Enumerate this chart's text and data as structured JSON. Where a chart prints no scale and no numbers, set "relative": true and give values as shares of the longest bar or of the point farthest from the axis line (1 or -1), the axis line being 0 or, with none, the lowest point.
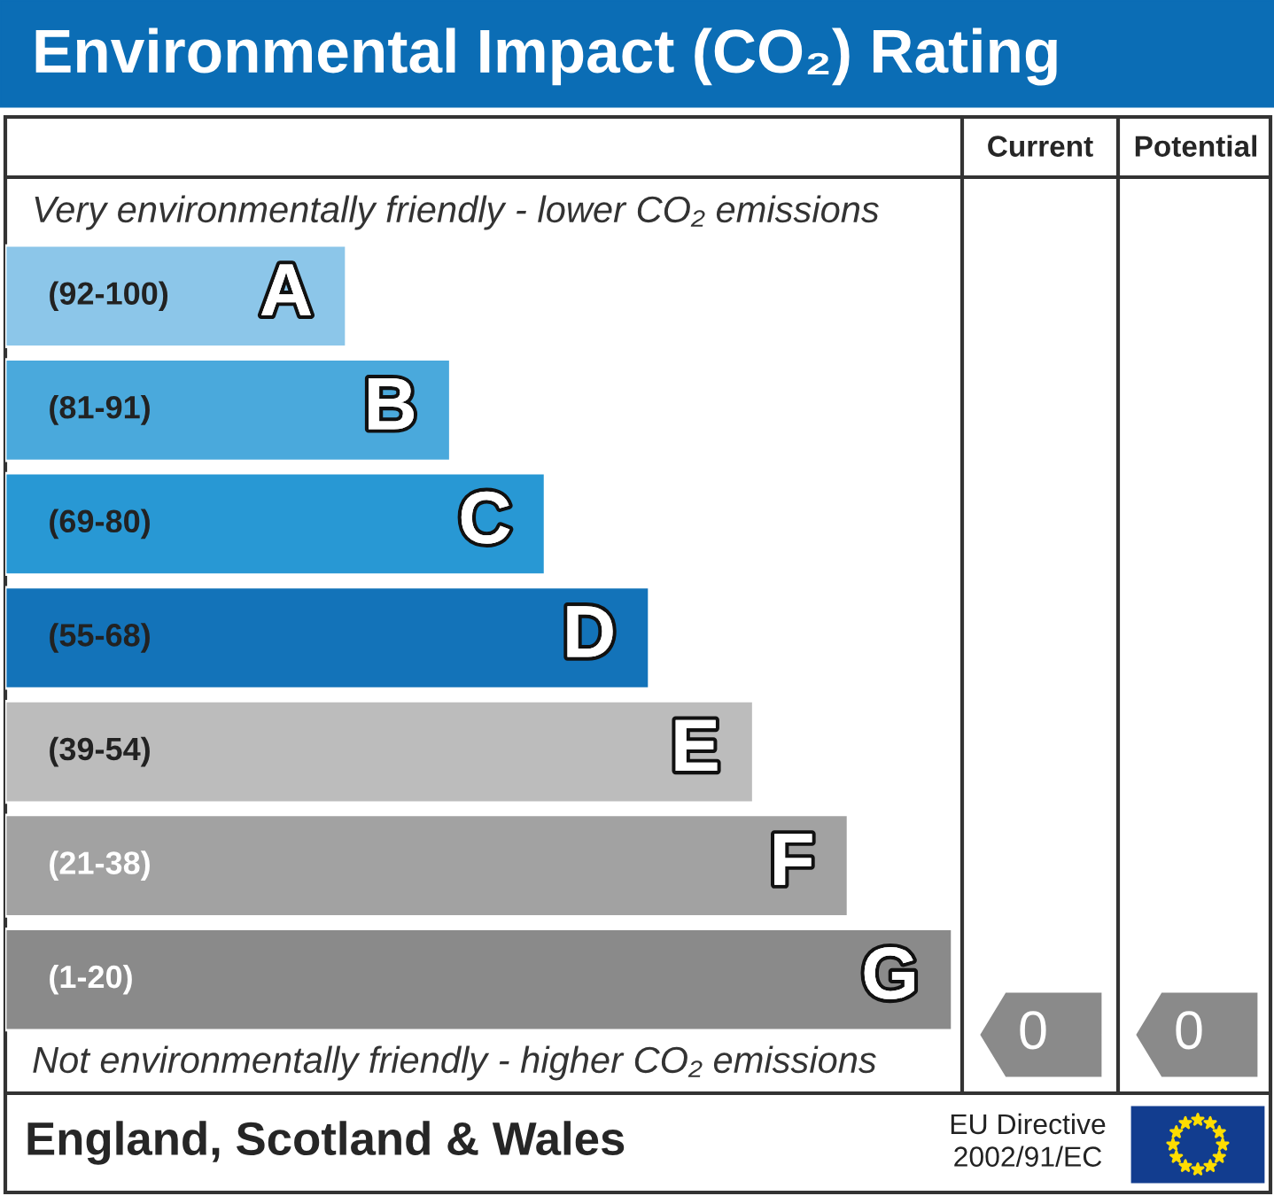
{
  "chart_data": {
    "type": "bar",
    "orientation": "horizontal",
    "relative": true,
    "title": "Environmental Impact (CO₂) Rating",
    "categories": [
      "A",
      "B",
      "C",
      "D",
      "E",
      "F",
      "G"
    ],
    "values": [
      0.36,
      0.47,
      0.57,
      0.68,
      0.79,
      0.89,
      1
    ],
    "colors": [
      "#8cc6e9",
      "#4aa9dc",
      "#2898d4",
      "#1373b9",
      "#bcbcbc",
      "#a2a2a2",
      "#8a8a8a"
    ],
    "annotations": [
      "Very environmentally friendly - lower CO₂ emissions",
      "Not environmentally friendly - higher CO₂ emissions",
      "(92-100)",
      "(81-91)",
      "(69-80)",
      "(55-68)",
      "(39-54)",
      "(21-38)",
      "(1-20)",
      "Current",
      "Potential",
      "0",
      "0",
      "England, Scotland & Wales",
      "EU Directive\n2002/91/EC"
    ]
  }
}
